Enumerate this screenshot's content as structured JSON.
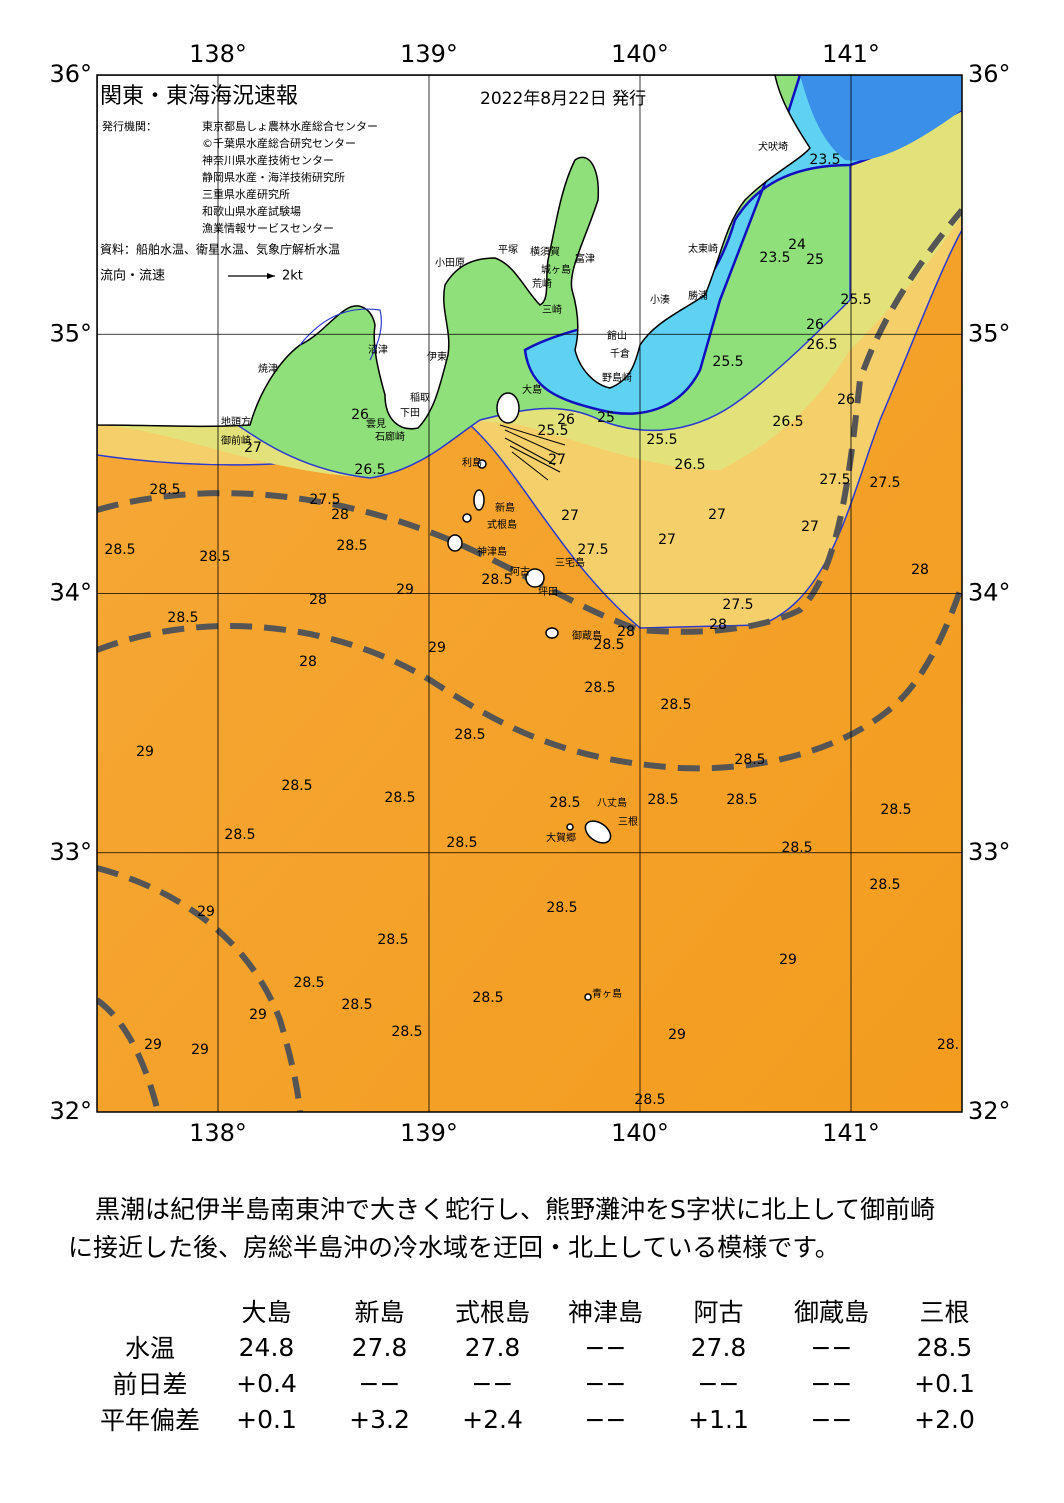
{
  "map": {
    "title": "関東・東海海況速報",
    "date": "2022年8月22日 発行",
    "issuer_label": "発行機関：",
    "issuers": [
      "東京都島しょ農林水産総合センター",
      "©千葉県水産総合研究センター",
      "神奈川県水産技術センター",
      "静岡県水産・海洋技術研究所",
      "三重県水産研究所",
      "和歌山県水産試験場",
      "漁業情報サービスセンター"
    ],
    "source": "資料：船舶水温、衛星水温、気象庁解析水温",
    "current_legend": {
      "label": "流向・流速",
      "speed": "2kt"
    },
    "lon_ticks": [
      {
        "value": 138,
        "label": "138°"
      },
      {
        "value": 139,
        "label": "139°"
      },
      {
        "value": 140,
        "label": "140°"
      },
      {
        "value": 141,
        "label": "141°"
      }
    ],
    "lat_ticks": [
      {
        "value": 36,
        "label": "36°"
      },
      {
        "value": 35,
        "label": "35°"
      },
      {
        "value": 34,
        "label": "34°"
      },
      {
        "value": 33,
        "label": "33°"
      },
      {
        "value": 32,
        "label": "32°"
      }
    ],
    "place_names": [
      "犬吠埼",
      "太東崎",
      "勝浦",
      "小湊",
      "富津",
      "横須賀",
      "城ヶ島",
      "荒崎",
      "三崎",
      "館山",
      "千倉",
      "野島崎",
      "平塚",
      "小田原",
      "伊東",
      "稲取",
      "下田",
      "石廊崎",
      "雲見",
      "沼津",
      "焼津",
      "地頭方",
      "御前崎",
      "大島",
      "利島",
      "新島",
      "式根島",
      "神津島",
      "三宅島",
      "阿古",
      "坪田",
      "御蔵島",
      "八丈島",
      "三根",
      "大賀郷",
      "青ヶ島"
    ],
    "contour_labels": [
      "28.5",
      "28",
      "27.5",
      "28.5",
      "28.5",
      "28.5",
      "28.5",
      "28",
      "29",
      "28",
      "29",
      "28.5",
      "29",
      "28.5",
      "28.5",
      "28.5",
      "28.5",
      "28.5",
      "28.5",
      "28.5",
      "28.5",
      "28.5",
      "28.5",
      "28.5",
      "28.5",
      "29",
      "28.5",
      "28.5",
      "28.5",
      "28.5",
      "29",
      "29",
      "29",
      "28.5",
      "29",
      "29",
      "28.5",
      "28.",
      "28.5",
      "28.5",
      "28.5",
      "28.5",
      "28",
      "28",
      "27.5",
      "27",
      "27",
      "27",
      "28",
      "27.5",
      "27.5",
      "27",
      "27.5",
      "26.5",
      "26",
      "25.5",
      "26.5",
      "26",
      "25",
      "25.5",
      "27",
      "26.5",
      "26",
      "27",
      "25.5",
      "26",
      "26.5",
      "25.5",
      "23.5",
      "24",
      "25",
      "23.5"
    ]
  },
  "commentary": {
    "lines": [
      "黒潮は紀伊半島南東沖で大きく蛇行し、熊野灘沖をS字状に北上して御前崎",
      "に接近した後、房総半島沖の冷水域を迂回・北上している模様です。"
    ]
  },
  "table": {
    "columns": [
      "大島",
      "新島",
      "式根島",
      "神津島",
      "阿古",
      "御蔵島",
      "三根"
    ],
    "rows": [
      {
        "label": "水温",
        "cells": [
          "24.8",
          "27.8",
          "27.8",
          "−−",
          "27.8",
          "−−",
          "28.5"
        ]
      },
      {
        "label": "前日差",
        "cells": [
          "+0.4",
          "−−",
          "−−",
          "−−",
          "−−",
          "−−",
          "+0.1"
        ]
      },
      {
        "label": "平年偏差",
        "cells": [
          "+0.1",
          "+3.2",
          "+2.4",
          "−−",
          "+1.1",
          "−−",
          "+2.0"
        ]
      }
    ]
  }
}
